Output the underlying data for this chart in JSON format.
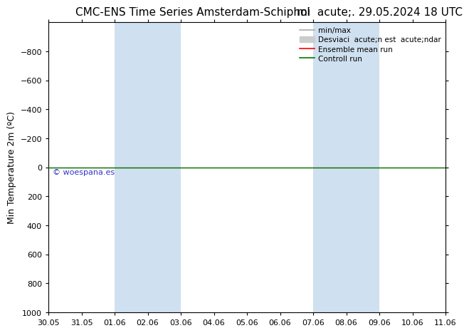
{
  "title_left": "CMC-ENS Time Series Amsterdam-Schiphol",
  "title_right": "mi  acute;. 29.05.2024 18 UTC",
  "ylabel": "Min Temperature 2m (ºC)",
  "ylim_bottom": 1000,
  "ylim_top": -1000,
  "yticks": [
    -800,
    -600,
    -400,
    -200,
    0,
    200,
    400,
    600,
    800,
    1000
  ],
  "xlabels": [
    "30.05",
    "31.05",
    "01.06",
    "02.06",
    "03.06",
    "04.06",
    "05.06",
    "06.06",
    "07.06",
    "08.06",
    "09.06",
    "10.06",
    "11.06"
  ],
  "x_positions": [
    0,
    1,
    2,
    3,
    4,
    5,
    6,
    7,
    8,
    9,
    10,
    11,
    12
  ],
  "xlim": [
    0,
    12
  ],
  "shaded_bands": [
    {
      "x_start": 2,
      "x_end": 4
    },
    {
      "x_start": 8,
      "x_end": 10
    }
  ],
  "shade_color": "#cfe0f0",
  "green_line_y": 0,
  "green_line_color": "#007700",
  "red_line_color": "#ff0000",
  "minmax_color": "#aaaaaa",
  "stddev_color": "#cccccc",
  "watermark_text": "© woespana.es",
  "watermark_color": "#3333cc",
  "legend_label_minmax": "min/max",
  "legend_label_std": "Desviaci  acute;n est  acute;ndar",
  "legend_label_ens": "Ensemble mean run",
  "legend_label_ctrl": "Controll run",
  "background_color": "#ffffff",
  "title_fontsize": 11,
  "axis_fontsize": 9,
  "tick_fontsize": 8
}
